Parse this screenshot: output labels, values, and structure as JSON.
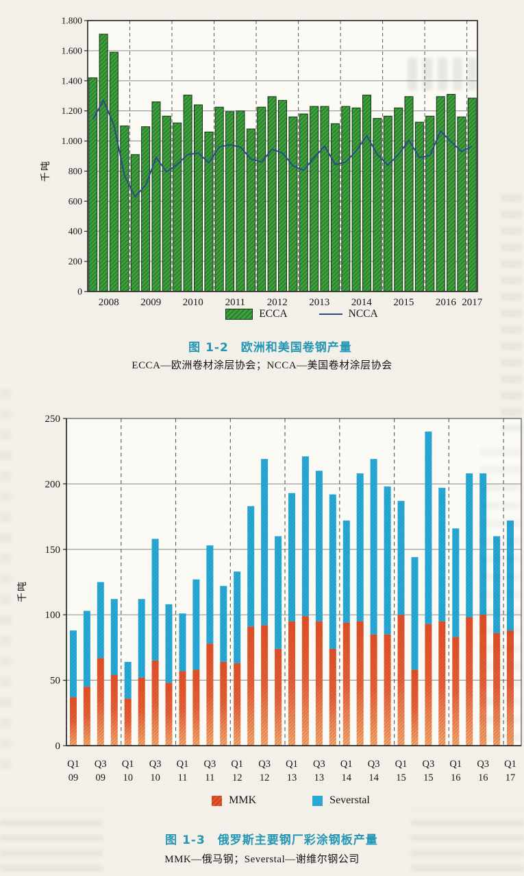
{
  "figures": {
    "fig1": {
      "title": "图 1-2　欧洲和美国卷钢产量",
      "subtitle": "ECCA—欧洲卷材涂层协会；NCCA—美国卷材涂层协会"
    },
    "fig2": {
      "title": "图 1-3　俄罗斯主要钢厂彩涂钢板产量",
      "subtitle": "MMK—俄马钢；Severstal—谢维尔钢公司"
    }
  },
  "chart_data": [
    {
      "type": "bar",
      "subtype": "bar+line",
      "title": "图 1-2 欧洲和美国卷钢产量",
      "ylabel": "千吨",
      "ylim": [
        0,
        1800
      ],
      "ytick_values": [
        0,
        200,
        400,
        600,
        800,
        1000,
        1200,
        1400,
        1600,
        1800
      ],
      "ytick_labels": [
        "0",
        "200",
        "400",
        "600",
        "800",
        "1.000",
        "1.200",
        "1.400",
        "1.600",
        "1.800"
      ],
      "years": [
        "2008",
        "2009",
        "2010",
        "2011",
        "2012",
        "2013",
        "2014",
        "2015",
        "2016",
        "2017"
      ],
      "quarters_per_year": [
        4,
        4,
        4,
        4,
        4,
        4,
        4,
        4,
        4,
        1
      ],
      "grid": "horizontal solid, dashed vertical year separators",
      "legend_position": "bottom",
      "series": [
        {
          "name": "ECCA",
          "type": "bar",
          "color": "#3ea23e",
          "values": [
            1420,
            1710,
            1590,
            1100,
            910,
            1095,
            1260,
            1165,
            1120,
            1305,
            1240,
            1060,
            1225,
            1195,
            1200,
            1080,
            1225,
            1295,
            1270,
            1160,
            1180,
            1230,
            1230,
            1115,
            1230,
            1220,
            1305,
            1150,
            1165,
            1220,
            1295,
            1125,
            1165,
            1295,
            1310,
            1160,
            1285
          ]
        },
        {
          "name": "NCCA",
          "type": "line",
          "color": "#2c4a86",
          "values": [
            1145,
            1270,
            1105,
            770,
            630,
            705,
            890,
            795,
            845,
            910,
            920,
            855,
            960,
            975,
            960,
            880,
            860,
            945,
            920,
            835,
            805,
            890,
            965,
            845,
            860,
            935,
            1035,
            910,
            840,
            910,
            1005,
            890,
            905,
            1065,
            995,
            930,
            965
          ]
        }
      ]
    },
    {
      "type": "bar",
      "subtype": "stacked-bar",
      "title": "图 1-3 俄罗斯主要钢厂彩涂钢板产量",
      "ylabel": "千吨",
      "ylim": [
        0,
        250
      ],
      "ytick_values": [
        0,
        50,
        100,
        150,
        200,
        250
      ],
      "ytick_labels": [
        "0",
        "50",
        "100",
        "150",
        "200",
        "250"
      ],
      "grid": "horizontal solid, dashed vertical year separators",
      "legend_position": "bottom",
      "x_labels": [
        {
          "q": "Q1",
          "yr": "09"
        },
        {
          "q": "Q3",
          "yr": "09"
        },
        {
          "q": "Q1",
          "yr": "10"
        },
        {
          "q": "Q3",
          "yr": "10"
        },
        {
          "q": "Q1",
          "yr": "11"
        },
        {
          "q": "Q3",
          "yr": "11"
        },
        {
          "q": "Q1",
          "yr": "12"
        },
        {
          "q": "Q3",
          "yr": "12"
        },
        {
          "q": "Q1",
          "yr": "13"
        },
        {
          "q": "Q3",
          "yr": "13"
        },
        {
          "q": "Q1",
          "yr": "14"
        },
        {
          "q": "Q3",
          "yr": "14"
        },
        {
          "q": "Q1",
          "yr": "15"
        },
        {
          "q": "Q3",
          "yr": "15"
        },
        {
          "q": "Q1",
          "yr": "16"
        },
        {
          "q": "Q3",
          "yr": "16"
        },
        {
          "q": "Q1",
          "yr": "17"
        }
      ],
      "series": [
        {
          "name": "MMK",
          "color": "#e2572f",
          "values": [
            37,
            45,
            67,
            54,
            36,
            52,
            65,
            48,
            57,
            58,
            78,
            64,
            63,
            91,
            92,
            74,
            95,
            99,
            95,
            74,
            94,
            95,
            85,
            85,
            100,
            58,
            93,
            95,
            83,
            98,
            100,
            86,
            88
          ]
        },
        {
          "name": "Severstal",
          "color": "#29a8d6",
          "values": [
            51,
            58,
            58,
            58,
            28,
            60,
            93,
            60,
            44,
            69,
            75,
            58,
            70,
            92,
            127,
            86,
            98,
            122,
            115,
            118,
            78,
            113,
            134,
            113,
            87,
            86,
            147,
            102,
            83,
            110,
            108,
            74,
            84
          ]
        }
      ]
    }
  ]
}
